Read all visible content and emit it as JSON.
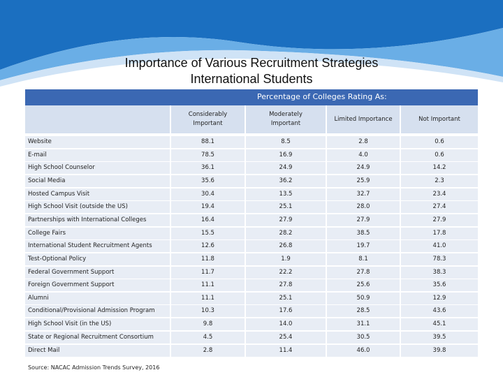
{
  "title_line1": "Importance of Various Recruitment Strategies",
  "title_line2": "International Students",
  "group_header": "Percentage of Colleges Rating As:",
  "columns": [
    {
      "line1": "Considerably",
      "line2": "Important"
    },
    {
      "line1": "Moderately",
      "line2": "Important"
    },
    {
      "line1": "Limited Importance",
      "line2": ""
    },
    {
      "line1": "Not Important",
      "line2": ""
    }
  ],
  "rows": [
    {
      "label": "Website",
      "v": [
        "88.1",
        "8.5",
        "2.8",
        "0.6"
      ]
    },
    {
      "label": "E-mail",
      "v": [
        "78.5",
        "16.9",
        "4.0",
        "0.6"
      ]
    },
    {
      "label": "High School Counselor",
      "v": [
        "36.1",
        "24.9",
        "24.9",
        "14.2"
      ]
    },
    {
      "label": "Social Media",
      "v": [
        "35.6",
        "36.2",
        "25.9",
        "2.3"
      ]
    },
    {
      "label": "Hosted Campus Visit",
      "v": [
        "30.4",
        "13.5",
        "32.7",
        "23.4"
      ]
    },
    {
      "label": "High School Visit (outside the US)",
      "v": [
        "19.4",
        "25.1",
        "28.0",
        "27.4"
      ]
    },
    {
      "label": "Partnerships with International Colleges",
      "v": [
        "16.4",
        "27.9",
        "27.9",
        "27.9"
      ]
    },
    {
      "label": "College Fairs",
      "v": [
        "15.5",
        "28.2",
        "38.5",
        "17.8"
      ]
    },
    {
      "label": "International Student Recruitment Agents",
      "v": [
        "12.6",
        "26.8",
        "19.7",
        "41.0"
      ]
    },
    {
      "label": "Test-Optional Policy",
      "v": [
        "11.8",
        "1.9",
        "8.1",
        "78.3"
      ]
    },
    {
      "label": "Federal Government Support",
      "v": [
        "11.7",
        "22.2",
        "27.8",
        "38.3"
      ]
    },
    {
      "label": "Foreign Government Support",
      "v": [
        "11.1",
        "27.8",
        "25.6",
        "35.6"
      ]
    },
    {
      "label": "Alumni",
      "v": [
        "11.1",
        "25.1",
        "50.9",
        "12.9"
      ]
    },
    {
      "label": "Conditional/Provisional Admission Program",
      "v": [
        "10.3",
        "17.6",
        "28.5",
        "43.6"
      ]
    },
    {
      "label": "High School Visit (in the US)",
      "v": [
        "9.8",
        "14.0",
        "31.1",
        "45.1"
      ]
    },
    {
      "label": "State or Regional Recruitment Consortium",
      "v": [
        "4.5",
        "25.4",
        "30.5",
        "39.5"
      ]
    },
    {
      "label": "Direct Mail",
      "v": [
        "2.8",
        "11.4",
        "46.0",
        "39.8"
      ]
    }
  ],
  "source": "Source: NACAC Admission Trends Survey, 2016",
  "colors": {
    "header": "#3b68b3",
    "light": "#d6e0ef",
    "row": "#e8edf5",
    "wave_dark": "#1b6fc0",
    "wave_light": "#6aaee6"
  }
}
